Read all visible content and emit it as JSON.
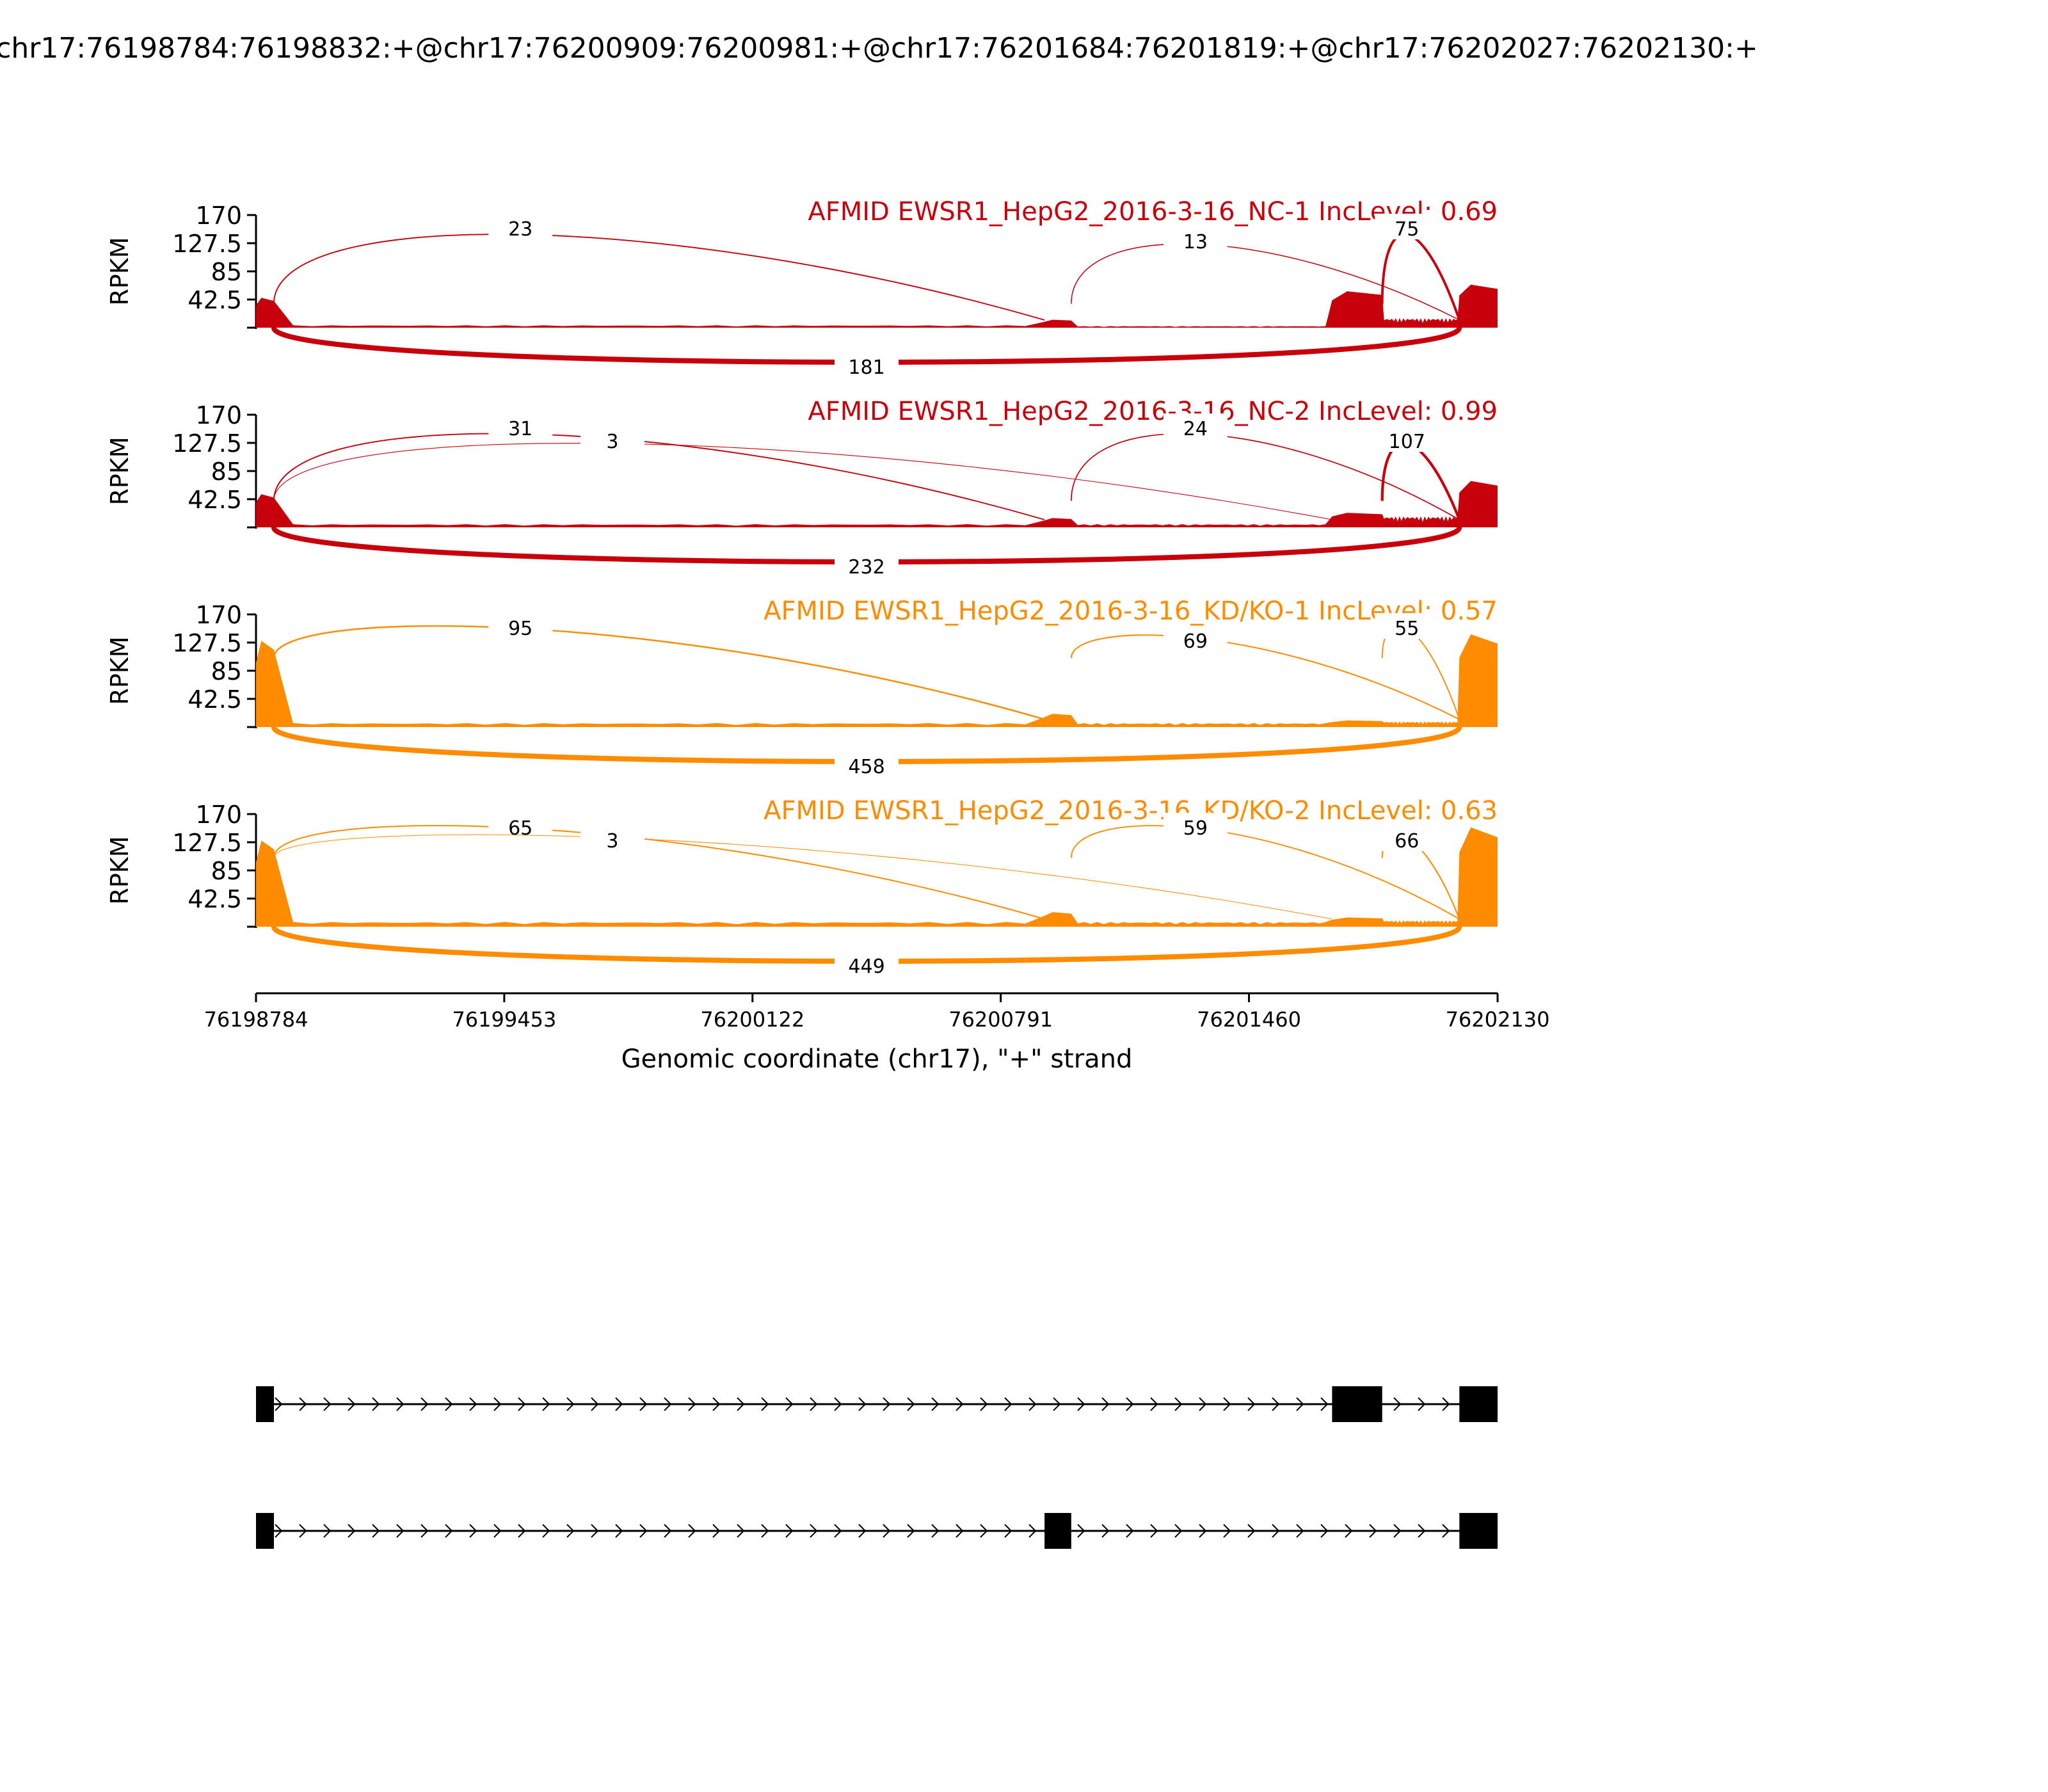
{
  "figure": {
    "title": "chr17:76198784:76198832:+@chr17:76200909:76200981:+@chr17:76201684:76201819:+@chr17:76202027:76202130:+"
  },
  "colors": {
    "nc": "#c8000b",
    "kd": "#ff8c00",
    "text": "#000000",
    "label_bg": "#ffffff"
  },
  "chart_data": {
    "type": "area",
    "subtype": "sashimi",
    "xlabel": "Genomic coordinate (chr17), \"+\" strand",
    "xlim": [
      76198784,
      76202130
    ],
    "xticks": [
      "76198784",
      "76199453",
      "76200122",
      "76200791",
      "76201460",
      "76202130"
    ],
    "ylabel": "RPKM",
    "ylim": [
      0,
      170
    ],
    "yticks": [
      "170",
      "127.5",
      "85",
      "42.5"
    ],
    "exons": [
      [
        76198784,
        76198832
      ],
      [
        76200909,
        76200981
      ],
      [
        76201684,
        76201819
      ],
      [
        76202027,
        76202130
      ]
    ],
    "isoforms": [
      {
        "exons": [
          [
            76198784,
            76198832
          ],
          [
            76201684,
            76201819
          ],
          [
            76202027,
            76202130
          ]
        ]
      },
      {
        "exons": [
          [
            76198784,
            76198832
          ],
          [
            76200909,
            76200981
          ],
          [
            76202027,
            76202130
          ]
        ]
      }
    ],
    "panels": [
      {
        "name": "AFMID EWSR1_HepG2_2016-3-16_NC-1 IncLevel: 0.69",
        "group": "nc",
        "exon_depth": [
          45,
          12,
          55,
          65
        ],
        "intron_depth": [
          3,
          2,
          12
        ],
        "junctions": [
          {
            "from": 76198832,
            "to": 76200909,
            "count": "23",
            "side": "above"
          },
          {
            "from": 76200981,
            "to": 76202027,
            "count": "13",
            "side": "above"
          },
          {
            "from": 76201819,
            "to": 76202027,
            "count": "75",
            "side": "above"
          },
          {
            "from": 76198832,
            "to": 76202027,
            "count": "181",
            "side": "below"
          }
        ]
      },
      {
        "name": "AFMID EWSR1_HepG2_2016-3-16_NC-2 IncLevel: 0.99",
        "group": "nc",
        "exon_depth": [
          50,
          14,
          22,
          70
        ],
        "intron_depth": [
          4,
          4,
          14
        ],
        "junctions": [
          {
            "from": 76198832,
            "to": 76200909,
            "count": "31",
            "side": "above"
          },
          {
            "from": 76198832,
            "to": 76201684,
            "count": "3",
            "side": "above"
          },
          {
            "from": 76200981,
            "to": 76202027,
            "count": "24",
            "side": "above"
          },
          {
            "from": 76201819,
            "to": 76202027,
            "count": "107",
            "side": "above"
          },
          {
            "from": 76198832,
            "to": 76202027,
            "count": "232",
            "side": "below"
          }
        ]
      },
      {
        "name": "AFMID EWSR1_HepG2_2016-3-16_KD/KO-1 IncLevel: 0.57",
        "group": "kd",
        "exon_depth": [
          130,
          20,
          10,
          140
        ],
        "intron_depth": [
          5,
          5,
          7
        ],
        "junctions": [
          {
            "from": 76198832,
            "to": 76200909,
            "count": "95",
            "side": "above"
          },
          {
            "from": 76200981,
            "to": 76202027,
            "count": "69",
            "side": "above"
          },
          {
            "from": 76201819,
            "to": 76202027,
            "count": "55",
            "side": "above"
          },
          {
            "from": 76198832,
            "to": 76202027,
            "count": "458",
            "side": "below"
          }
        ]
      },
      {
        "name": "AFMID EWSR1_HepG2_2016-3-16_KD/KO-2 IncLevel: 0.63",
        "group": "kd",
        "exon_depth": [
          130,
          22,
          14,
          150
        ],
        "intron_depth": [
          6,
          6,
          8
        ],
        "junctions": [
          {
            "from": 76198832,
            "to": 76200909,
            "count": "65",
            "side": "above"
          },
          {
            "from": 76198832,
            "to": 76201684,
            "count": "3",
            "side": "above"
          },
          {
            "from": 76200981,
            "to": 76202027,
            "count": "59",
            "side": "above"
          },
          {
            "from": 76201819,
            "to": 76202027,
            "count": "66",
            "side": "above"
          },
          {
            "from": 76198832,
            "to": 76202027,
            "count": "449",
            "side": "below"
          }
        ]
      }
    ]
  }
}
